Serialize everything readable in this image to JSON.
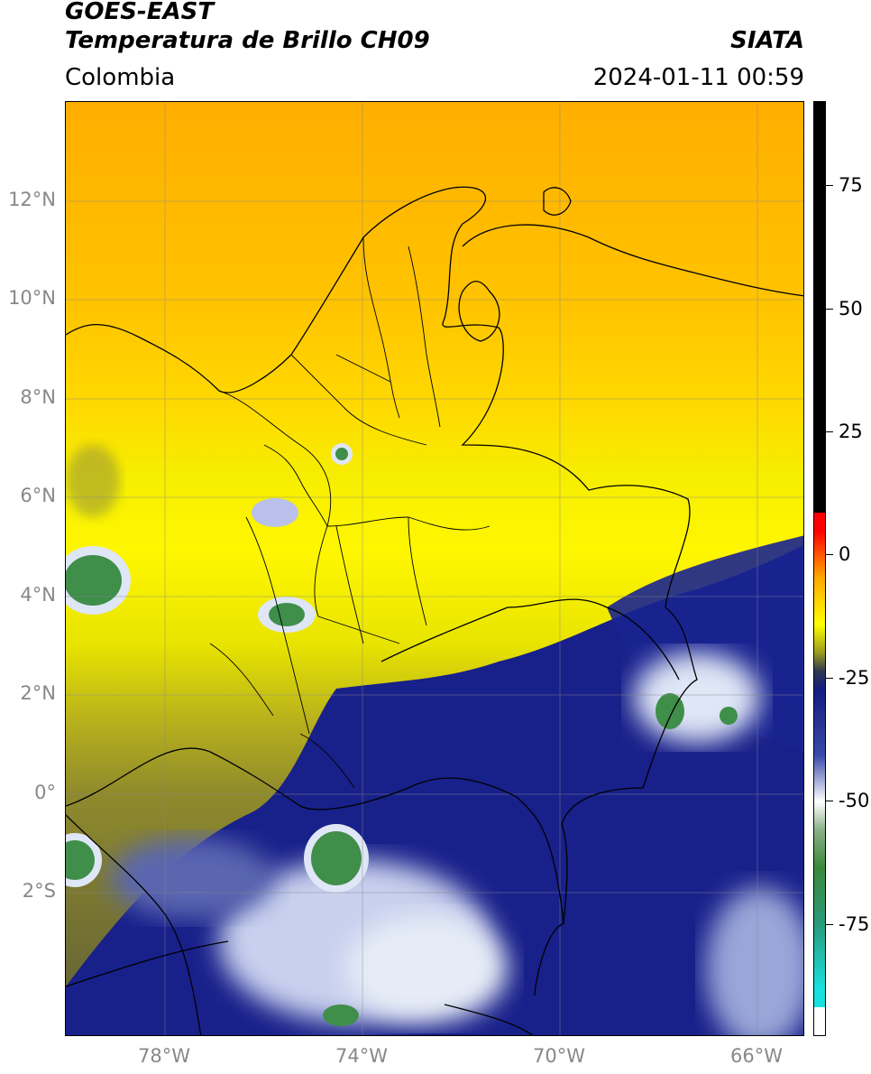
{
  "header": {
    "title_line1": "GOES-EAST",
    "title_line2": "Temperatura de Brillo CH09",
    "source": "SIATA",
    "region": "Colombia",
    "datetime": "2024-01-11 00:59"
  },
  "axes": {
    "lat_labels": [
      {
        "label": "12°N",
        "lat": 12
      },
      {
        "label": "10°N",
        "lat": 10
      },
      {
        "label": "8°N",
        "lat": 8
      },
      {
        "label": "6°N",
        "lat": 6
      },
      {
        "label": "4°N",
        "lat": 4
      },
      {
        "label": "2°N",
        "lat": 2
      },
      {
        "label": "0°",
        "lat": 0
      },
      {
        "label": "2°S",
        "lat": -2
      }
    ],
    "lon_labels": [
      {
        "label": "78°W",
        "lon": -78
      },
      {
        "label": "74°W",
        "lon": -74
      },
      {
        "label": "70°W",
        "lon": -70
      },
      {
        "label": "66°W",
        "lon": -66
      }
    ],
    "lon_range": [
      -80,
      -65
    ],
    "lat_range": [
      -4.9,
      14
    ]
  },
  "colorbar": {
    "labels": [
      {
        "label": "75",
        "value": 75
      },
      {
        "label": "50",
        "value": 50
      },
      {
        "label": "25",
        "value": 25
      },
      {
        "label": "0",
        "value": 0
      },
      {
        "label": "-25",
        "value": -25
      },
      {
        "label": "-50",
        "value": -50
      },
      {
        "label": "-75",
        "value": -75
      }
    ],
    "range": [
      -100,
      90
    ],
    "colors": {
      "hot": "#000000",
      "red": "#ff0000",
      "orange": "#ffaa00",
      "yellow": "#ffff00",
      "olive": "#9a9a20",
      "navy": "#141c80",
      "white": "#ffffff",
      "green": "#3a8a3a",
      "cyan": "#19e0e0"
    }
  },
  "legend": {
    "map_colors": {
      "north_sea": "#ffb000",
      "mid": "#ffd500",
      "south_cloud": "#1a2288"
    }
  }
}
